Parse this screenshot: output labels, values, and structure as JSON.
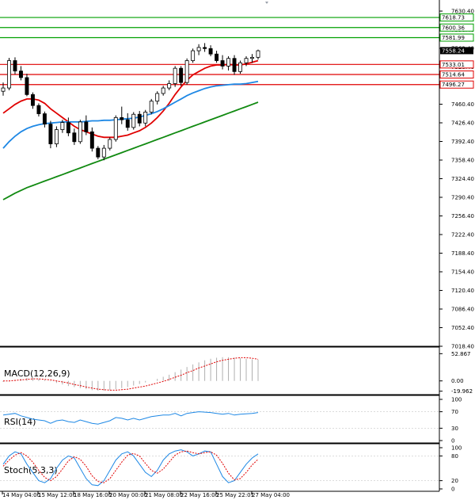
{
  "colors": {
    "background": "#ffffff",
    "resistance": "#00a000",
    "support": "#e00000",
    "ema_fast": "#e00000",
    "ema_mid": "#1e88e5",
    "ema_slow": "#118a11",
    "candle_up": "#ffffff",
    "candle_down": "#000000",
    "price_tag": "#000000",
    "osc": "#1e88e5",
    "signal": "#e00000"
  },
  "chart_data": {
    "type": "candlestick",
    "title": "",
    "price_axis": {
      "range": [
        7018.4,
        7642.0
      ],
      "ticks": [
        "7630.40",
        "7596.40",
        "7562.40",
        "7528.40",
        "7494.40",
        "7460.40",
        "7426.40",
        "7392.40",
        "7358.40",
        "7324.40",
        "7290.40",
        "7256.40",
        "7222.40",
        "7188.40",
        "7154.40",
        "7120.40",
        "7086.40",
        "7052.40",
        "7018.40"
      ]
    },
    "time_axis": {
      "labels": [
        "14 May 04:00",
        "15 May 12:00",
        "18 May 16:00",
        "20 May 00:00",
        "21 May 08:00",
        "22 May 16:00",
        "25 May 22:01",
        "27 May 04:00"
      ]
    },
    "resistance_levels": [
      "7618.73",
      "7600.36",
      "7581.99"
    ],
    "support_levels": [
      "7533.01",
      "7514.64",
      "7496.27"
    ],
    "current_price": "7558.24",
    "candles": [
      {
        "o": 7484,
        "h": 7500,
        "l": 7476,
        "c": 7490
      },
      {
        "o": 7490,
        "h": 7545,
        "l": 7486,
        "c": 7540
      },
      {
        "o": 7540,
        "h": 7546,
        "l": 7515,
        "c": 7521
      },
      {
        "o": 7521,
        "h": 7530,
        "l": 7504,
        "c": 7509
      },
      {
        "o": 7509,
        "h": 7516,
        "l": 7475,
        "c": 7478
      },
      {
        "o": 7478,
        "h": 7482,
        "l": 7452,
        "c": 7458
      },
      {
        "o": 7458,
        "h": 7462,
        "l": 7438,
        "c": 7443
      },
      {
        "o": 7443,
        "h": 7447,
        "l": 7418,
        "c": 7424
      },
      {
        "o": 7424,
        "h": 7430,
        "l": 7380,
        "c": 7388
      },
      {
        "o": 7388,
        "h": 7420,
        "l": 7382,
        "c": 7414
      },
      {
        "o": 7414,
        "h": 7432,
        "l": 7408,
        "c": 7427
      },
      {
        "o": 7427,
        "h": 7436,
        "l": 7402,
        "c": 7408
      },
      {
        "o": 7408,
        "h": 7416,
        "l": 7386,
        "c": 7392
      },
      {
        "o": 7392,
        "h": 7432,
        "l": 7388,
        "c": 7428
      },
      {
        "o": 7428,
        "h": 7440,
        "l": 7404,
        "c": 7410
      },
      {
        "o": 7410,
        "h": 7418,
        "l": 7374,
        "c": 7380
      },
      {
        "o": 7380,
        "h": 7384,
        "l": 7360,
        "c": 7364
      },
      {
        "o": 7364,
        "h": 7386,
        "l": 7358,
        "c": 7380
      },
      {
        "o": 7380,
        "h": 7400,
        "l": 7376,
        "c": 7396
      },
      {
        "o": 7396,
        "h": 7440,
        "l": 7392,
        "c": 7436
      },
      {
        "o": 7436,
        "h": 7456,
        "l": 7424,
        "c": 7432
      },
      {
        "o": 7432,
        "h": 7444,
        "l": 7412,
        "c": 7418
      },
      {
        "o": 7418,
        "h": 7446,
        "l": 7414,
        "c": 7442
      },
      {
        "o": 7442,
        "h": 7448,
        "l": 7420,
        "c": 7426
      },
      {
        "o": 7426,
        "h": 7450,
        "l": 7420,
        "c": 7446
      },
      {
        "o": 7446,
        "h": 7470,
        "l": 7442,
        "c": 7466
      },
      {
        "o": 7466,
        "h": 7484,
        "l": 7460,
        "c": 7480
      },
      {
        "o": 7480,
        "h": 7494,
        "l": 7476,
        "c": 7490
      },
      {
        "o": 7490,
        "h": 7504,
        "l": 7486,
        "c": 7498
      },
      {
        "o": 7498,
        "h": 7530,
        "l": 7492,
        "c": 7526
      },
      {
        "o": 7526,
        "h": 7530,
        "l": 7494,
        "c": 7500
      },
      {
        "o": 7500,
        "h": 7544,
        "l": 7496,
        "c": 7540
      },
      {
        "o": 7540,
        "h": 7562,
        "l": 7536,
        "c": 7558
      },
      {
        "o": 7558,
        "h": 7570,
        "l": 7550,
        "c": 7564
      },
      {
        "o": 7564,
        "h": 7572,
        "l": 7556,
        "c": 7562
      },
      {
        "o": 7562,
        "h": 7568,
        "l": 7548,
        "c": 7552
      },
      {
        "o": 7552,
        "h": 7558,
        "l": 7536,
        "c": 7540
      },
      {
        "o": 7540,
        "h": 7550,
        "l": 7524,
        "c": 7530
      },
      {
        "o": 7530,
        "h": 7548,
        "l": 7522,
        "c": 7544
      },
      {
        "o": 7544,
        "h": 7550,
        "l": 7514,
        "c": 7520
      },
      {
        "o": 7520,
        "h": 7540,
        "l": 7516,
        "c": 7536
      },
      {
        "o": 7536,
        "h": 7548,
        "l": 7530,
        "c": 7544
      },
      {
        "o": 7544,
        "h": 7552,
        "l": 7536,
        "c": 7546
      },
      {
        "o": 7546,
        "h": 7560,
        "l": 7542,
        "c": 7558
      }
    ],
    "series": [
      {
        "name": "",
        "color_key": "ema_fast",
        "values": [
          7444,
          7452,
          7460,
          7466,
          7470,
          7470,
          7468,
          7462,
          7452,
          7444,
          7436,
          7428,
          7420,
          7414,
          7410,
          7406,
          7402,
          7400,
          7400,
          7400,
          7402,
          7404,
          7408,
          7412,
          7418,
          7426,
          7436,
          7448,
          7462,
          7478,
          7492,
          7504,
          7514,
          7520,
          7526,
          7530,
          7532,
          7532,
          7533,
          7532,
          7532,
          7534,
          7537,
          7540
        ]
      },
      {
        "name": "",
        "color_key": "ema_mid",
        "values": [
          7380,
          7392,
          7402,
          7410,
          7416,
          7420,
          7423,
          7425,
          7426,
          7427,
          7428,
          7428,
          7428,
          7428,
          7429,
          7430,
          7430,
          7431,
          7431,
          7432,
          7433,
          7434,
          7435,
          7437,
          7440,
          7443,
          7447,
          7452,
          7458,
          7464,
          7470,
          7476,
          7481,
          7485,
          7489,
          7492,
          7494,
          7495,
          7496,
          7497,
          7497,
          7498,
          7500,
          7502
        ]
      },
      {
        "name": "",
        "color_key": "ema_slow",
        "values": [
          7286,
          7292,
          7298,
          7303,
          7308,
          7312,
          7316,
          7320,
          7324,
          7328,
          7332,
          7336,
          7340,
          7344,
          7348,
          7352,
          7356,
          7360,
          7364,
          7368,
          7372,
          7376,
          7380,
          7384,
          7388,
          7392,
          7396,
          7400,
          7404,
          7408,
          7412,
          7416,
          7420,
          7424,
          7428,
          7432,
          7436,
          7440,
          7444,
          7448,
          7452,
          7456,
          7460,
          7464
        ]
      }
    ],
    "indicators": [
      {
        "name": "MACD(12,26,9)",
        "ticks": [
          "52.867",
          "0.00",
          "-19.962"
        ],
        "range": [
          -22,
          58
        ],
        "hist": [
          -2,
          -1,
          2,
          4,
          6,
          6,
          4,
          2,
          -1,
          -4,
          -7,
          -10,
          -12,
          -14,
          -16,
          -18,
          -19,
          -19,
          -18,
          -16,
          -14,
          -12,
          -9,
          -6,
          -3,
          0,
          4,
          8,
          12,
          17,
          22,
          27,
          32,
          36,
          40,
          43,
          45,
          46,
          46,
          45,
          44,
          43,
          42,
          41
        ],
        "signal": [
          0,
          0,
          1,
          2,
          3,
          4,
          4,
          3,
          2,
          0,
          -2,
          -4,
          -7,
          -9,
          -12,
          -14,
          -16,
          -17,
          -18,
          -18,
          -17,
          -16,
          -14,
          -12,
          -10,
          -7,
          -4,
          -1,
          3,
          7,
          11,
          16,
          20,
          25,
          29,
          33,
          37,
          40,
          42,
          44,
          45,
          45,
          44,
          42
        ]
      },
      {
        "name": "RSI(14)",
        "ticks": [
          "100",
          "70",
          "30",
          "0"
        ],
        "range": [
          0,
          100
        ],
        "values": [
          62,
          64,
          66,
          60,
          56,
          52,
          50,
          48,
          42,
          48,
          50,
          46,
          44,
          50,
          46,
          42,
          40,
          44,
          48,
          56,
          54,
          50,
          54,
          50,
          54,
          58,
          60,
          62,
          62,
          66,
          60,
          66,
          68,
          70,
          69,
          68,
          66,
          64,
          66,
          62,
          64,
          65,
          66,
          68
        ]
      },
      {
        "name": "Stoch(5,3,3)",
        "ticks": [
          "100",
          "80",
          "20",
          "0"
        ],
        "range": [
          0,
          100
        ],
        "k": [
          60,
          80,
          90,
          85,
          60,
          40,
          20,
          15,
          25,
          50,
          70,
          80,
          75,
          50,
          25,
          10,
          8,
          20,
          45,
          70,
          85,
          90,
          80,
          60,
          40,
          30,
          45,
          70,
          85,
          92,
          95,
          90,
          80,
          85,
          92,
          90,
          60,
          30,
          15,
          20,
          40,
          60,
          75,
          85
        ],
        "d": [
          55,
          70,
          82,
          88,
          80,
          65,
          45,
          28,
          20,
          30,
          48,
          68,
          78,
          72,
          55,
          32,
          18,
          15,
          25,
          45,
          65,
          82,
          86,
          80,
          62,
          45,
          38,
          48,
          65,
          82,
          90,
          92,
          88,
          85,
          88,
          90,
          82,
          62,
          38,
          22,
          25,
          40,
          58,
          72
        ]
      }
    ]
  }
}
